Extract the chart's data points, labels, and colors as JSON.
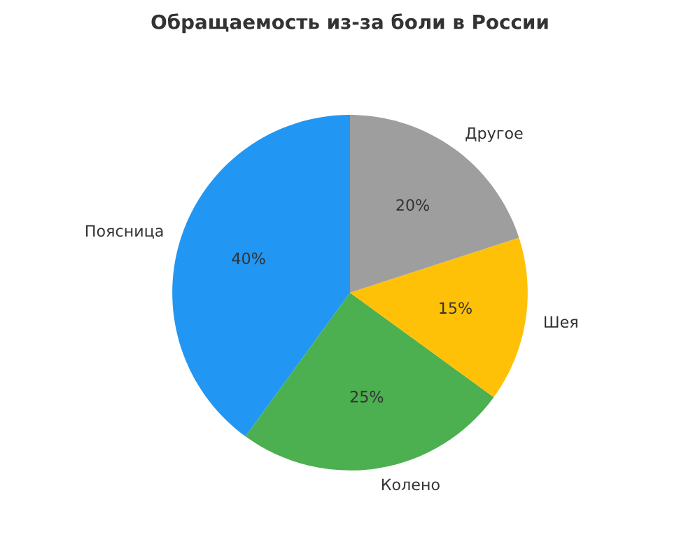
{
  "chart_data": {
    "type": "pie",
    "title": "Обращаемость из-за боли в России",
    "categories": [
      "Поясница",
      "Колено",
      "Шея",
      "Другое"
    ],
    "values": [
      40,
      25,
      15,
      20
    ],
    "colors": [
      "#2196f3",
      "#4caf50",
      "#ffc107",
      "#9e9e9e"
    ],
    "value_labels": [
      "40%",
      "25%",
      "15%",
      "20%"
    ]
  }
}
